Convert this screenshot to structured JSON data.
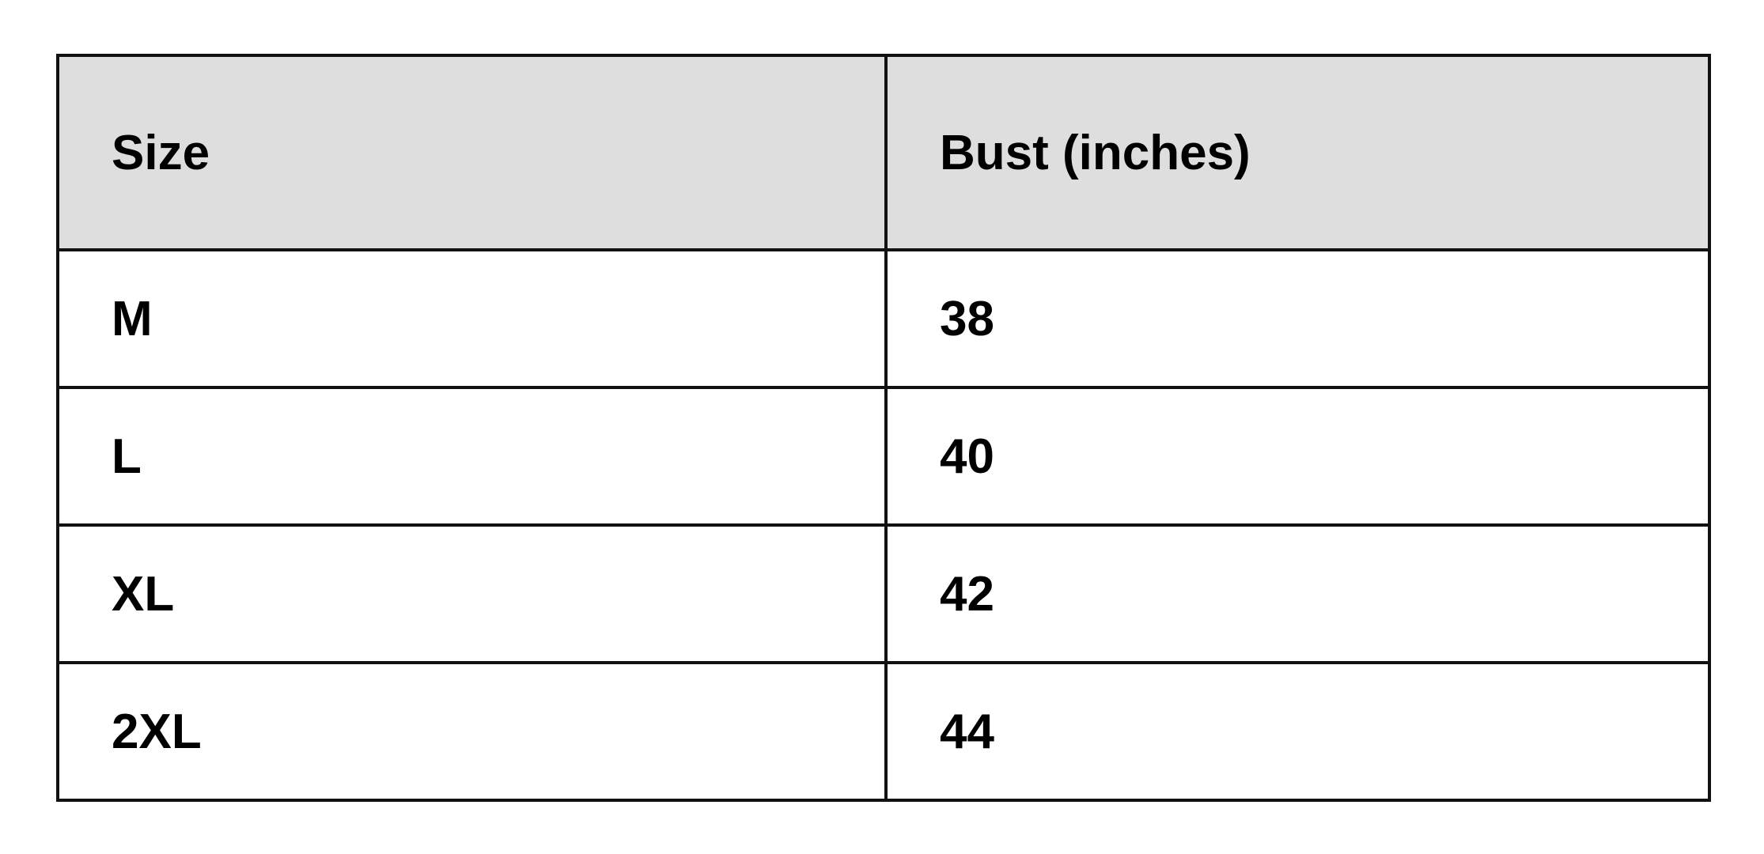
{
  "table": {
    "headers": [
      "Size",
      "Bust (inches)"
    ],
    "rows": [
      [
        "M",
        "38"
      ],
      [
        "L",
        "40"
      ],
      [
        "XL",
        "42"
      ],
      [
        "2XL",
        "44"
      ]
    ],
    "header_bg": "#dedede"
  }
}
